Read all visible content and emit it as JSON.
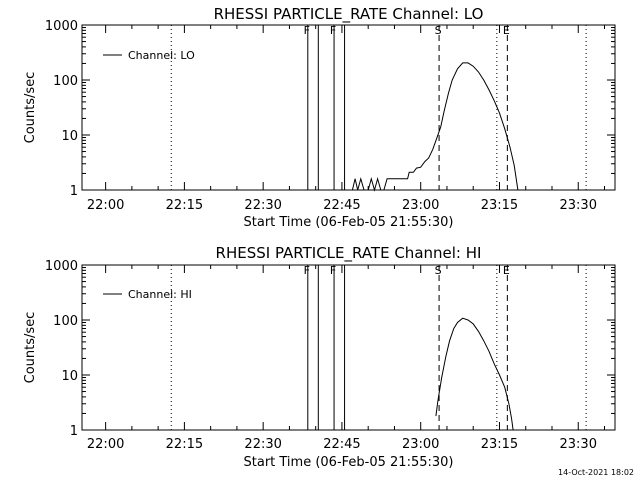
{
  "chart_data": [
    {
      "type": "line",
      "title": "RHESSI PARTICLE_RATE Channel: LO",
      "xlabel": "Start Time (06-Feb-05 21:55:30)",
      "ylabel": "Counts/sec",
      "x_tick_labels": [
        "22:00",
        "22:15",
        "22:30",
        "22:45",
        "23:00",
        "23:15",
        "23:30"
      ],
      "x_tick_minutes": [
        0,
        15,
        30,
        45,
        60,
        75,
        90
      ],
      "x_range_minutes": [
        -4.5,
        97
      ],
      "y_scale": "log",
      "y_tick_labels": [
        "1",
        "10",
        "100",
        "1000"
      ],
      "y_range": [
        1,
        1000
      ],
      "legend": "Channel: LO",
      "legend_placement": "top-left",
      "flag_lines": [
        {
          "minute": 38.5,
          "label": "F",
          "style": "solid"
        },
        {
          "minute": 40.5,
          "label": "",
          "style": "solid"
        },
        {
          "minute": 43.5,
          "label": "F",
          "style": "solid"
        },
        {
          "minute": 45.5,
          "label": "",
          "style": "solid"
        },
        {
          "minute": 63.5,
          "label": "S",
          "style": "dashed"
        },
        {
          "minute": 76.5,
          "label": "E",
          "style": "dashed"
        },
        {
          "minute": 12.5,
          "label": "",
          "style": "dotted"
        },
        {
          "minute": 74.5,
          "label": "",
          "style": "dotted"
        },
        {
          "minute": 91.5,
          "label": "",
          "style": "dotted"
        }
      ],
      "series": [
        {
          "name": "Channel: LO",
          "points": [
            [
              47,
              1
            ],
            [
              47.5,
              1.6
            ],
            [
              48,
              1
            ],
            [
              48.6,
              1.6
            ],
            [
              49.2,
              1
            ],
            [
              50,
              1
            ],
            [
              50.6,
              1.6
            ],
            [
              51.2,
              1
            ],
            [
              51.8,
              1.6
            ],
            [
              52.4,
              1
            ],
            [
              53,
              1
            ],
            [
              53.6,
              1.6
            ],
            [
              55,
              1.6
            ],
            [
              56.5,
              1.6
            ],
            [
              57.5,
              1.6
            ],
            [
              57.8,
              2.1
            ],
            [
              58.6,
              2.1
            ],
            [
              59.2,
              2.5
            ],
            [
              60,
              2.6
            ],
            [
              60.8,
              3.3
            ],
            [
              61.5,
              3.8
            ],
            [
              62.3,
              5.5
            ],
            [
              63,
              8.5
            ],
            [
              63.8,
              14
            ],
            [
              64.5,
              28
            ],
            [
              65.3,
              58
            ],
            [
              66,
              100
            ],
            [
              67,
              160
            ],
            [
              68,
              205
            ],
            [
              69,
              205
            ],
            [
              70,
              178
            ],
            [
              71,
              140
            ],
            [
              72,
              100
            ],
            [
              73,
              66
            ],
            [
              74,
              42
            ],
            [
              75,
              25
            ],
            [
              76,
              13
            ],
            [
              77,
              6
            ],
            [
              77.8,
              2.8
            ],
            [
              78.5,
              1
            ]
          ]
        }
      ]
    },
    {
      "type": "line",
      "title": "RHESSI PARTICLE_RATE Channel: HI",
      "xlabel": "Start Time (06-Feb-05 21:55:30)",
      "ylabel": "Counts/sec",
      "x_tick_labels": [
        "22:00",
        "22:15",
        "22:30",
        "22:45",
        "23:00",
        "23:15",
        "23:30"
      ],
      "x_tick_minutes": [
        0,
        15,
        30,
        45,
        60,
        75,
        90
      ],
      "x_range_minutes": [
        -4.5,
        97
      ],
      "y_scale": "log",
      "y_tick_labels": [
        "1",
        "10",
        "100",
        "1000"
      ],
      "y_range": [
        1,
        1000
      ],
      "legend": "Channel: HI",
      "legend_placement": "top-left",
      "flag_lines": [
        {
          "minute": 38.5,
          "label": "F",
          "style": "solid"
        },
        {
          "minute": 40.5,
          "label": "",
          "style": "solid"
        },
        {
          "minute": 43.5,
          "label": "F",
          "style": "solid"
        },
        {
          "minute": 45.5,
          "label": "",
          "style": "solid"
        },
        {
          "minute": 63.5,
          "label": "S",
          "style": "dashed"
        },
        {
          "minute": 76.5,
          "label": "E",
          "style": "dashed"
        },
        {
          "minute": 12.5,
          "label": "",
          "style": "dotted"
        },
        {
          "minute": 74.5,
          "label": "",
          "style": "dotted"
        },
        {
          "minute": 91.5,
          "label": "",
          "style": "dotted"
        }
      ],
      "series": [
        {
          "name": "Channel: HI",
          "points": [
            [
              62.9,
              1.8
            ],
            [
              63.3,
              3.5
            ],
            [
              64,
              9
            ],
            [
              64.8,
              22
            ],
            [
              65.5,
              42
            ],
            [
              66.3,
              70
            ],
            [
              67,
              90
            ],
            [
              68,
              108
            ],
            [
              69,
              100
            ],
            [
              70,
              85
            ],
            [
              71,
              62
            ],
            [
              72,
              42
            ],
            [
              73,
              27
            ],
            [
              74,
              16
            ],
            [
              75,
              10
            ],
            [
              76,
              6
            ],
            [
              76.8,
              3
            ],
            [
              77.3,
              1.6
            ],
            [
              77.6,
              1
            ]
          ]
        }
      ]
    }
  ],
  "footer_timestamp": "14-Oct-2021 18:02"
}
